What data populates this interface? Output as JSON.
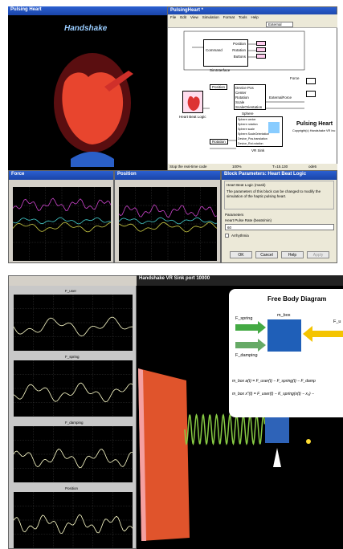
{
  "top": {
    "viewer_title": "Pulsing Heart",
    "logo": "Handshake",
    "model_title": "PulsingHeart *",
    "menu": [
      "File",
      "Edit",
      "View",
      "Simulation",
      "Format",
      "Tools",
      "Help"
    ],
    "toolbar_mode": "External",
    "siminterface": {
      "outputs": [
        "Position",
        "Rotation",
        "Buttons"
      ],
      "input": "Command",
      "caption": "SimInterface"
    },
    "heart_caption": "Heart Beat Logic",
    "position_tag": "Position",
    "rotation_tag": "Rotation",
    "sphere": {
      "inputs": [
        "Device Pos",
        "Center",
        "Rotation",
        "Scale",
        "ScaleOrientation"
      ],
      "outputs": [
        "Force",
        "ExternalForce"
      ],
      "caption": "Sphere"
    },
    "vrsink": {
      "inputs": [
        "Sphere center",
        "Sphere rotation",
        "Sphere scale",
        "Sphere.ScaleOrientation",
        "Device_Pos.translation",
        "Device_Rot.rotation"
      ],
      "caption": "VR Sink"
    },
    "model_caption": "Pulsing Heart",
    "copyright": "Copyright(c) Handshake VR Inc",
    "status": [
      "Stop the real-time code",
      "100%",
      "T=15.130",
      "ode5"
    ],
    "scopes": [
      "Force",
      "Position"
    ],
    "dialog": {
      "title": "Block Parameters: Heart Beat Logic",
      "heading": "Heart Beat Logic (mask)",
      "description": "The parameters of this block can be changed to modify the simulation of the haptic pulsing heart.",
      "group": "Parameters",
      "field_label": "Heart Pulse Rate (beats/min)",
      "field_value": "60",
      "checkbox": "Arrhythmia",
      "buttons": [
        "OK",
        "Cancel",
        "Help",
        "Apply"
      ]
    }
  },
  "bottom": {
    "sink_title": "Handshake VR Sink port 10000",
    "plots": [
      "F_user",
      "F_spring",
      "F_damping",
      "Position"
    ],
    "diagram": {
      "title": "Free Body Diagram",
      "spring": "F_spring",
      "damping": "F_damping",
      "mass": "m_box",
      "user": "F_u",
      "equations": [
        "m_box a(t) = F_user(t) − F_spring(t) − F_damp",
        "m_box x″(t) = F_user(t) − K_spring(x(t) − x₀) −"
      ]
    }
  }
}
